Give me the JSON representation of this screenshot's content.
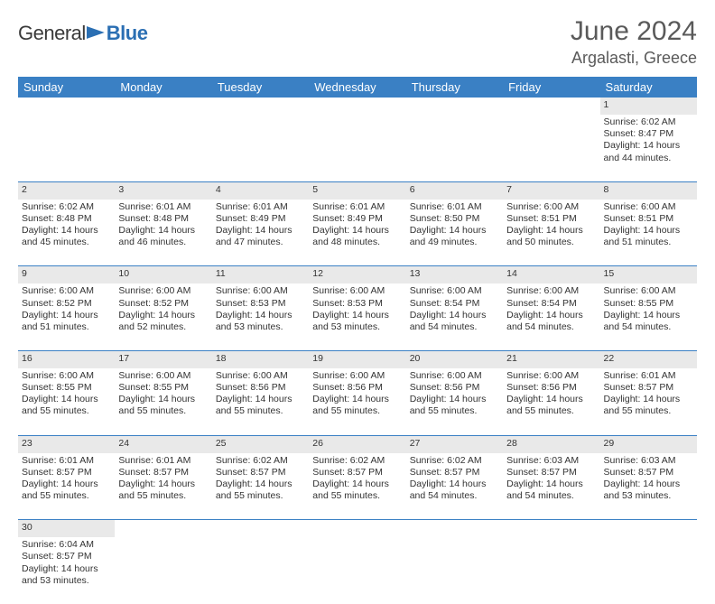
{
  "brand": {
    "part1": "General",
    "part2": "Blue"
  },
  "title": "June 2024",
  "location": "Argalasti, Greece",
  "colors": {
    "header_bg": "#3a80c4",
    "header_fg": "#ffffff",
    "daynum_bg": "#e9e9e9",
    "rule": "#3a80c4",
    "text": "#333333",
    "title_color": "#5a5a5a"
  },
  "weekdays": [
    "Sunday",
    "Monday",
    "Tuesday",
    "Wednesday",
    "Thursday",
    "Friday",
    "Saturday"
  ],
  "first_weekday_index": 6,
  "days": [
    {
      "n": 1,
      "sunrise": "6:02 AM",
      "sunset": "8:47 PM",
      "daylight": "14 hours and 44 minutes."
    },
    {
      "n": 2,
      "sunrise": "6:02 AM",
      "sunset": "8:48 PM",
      "daylight": "14 hours and 45 minutes."
    },
    {
      "n": 3,
      "sunrise": "6:01 AM",
      "sunset": "8:48 PM",
      "daylight": "14 hours and 46 minutes."
    },
    {
      "n": 4,
      "sunrise": "6:01 AM",
      "sunset": "8:49 PM",
      "daylight": "14 hours and 47 minutes."
    },
    {
      "n": 5,
      "sunrise": "6:01 AM",
      "sunset": "8:49 PM",
      "daylight": "14 hours and 48 minutes."
    },
    {
      "n": 6,
      "sunrise": "6:01 AM",
      "sunset": "8:50 PM",
      "daylight": "14 hours and 49 minutes."
    },
    {
      "n": 7,
      "sunrise": "6:00 AM",
      "sunset": "8:51 PM",
      "daylight": "14 hours and 50 minutes."
    },
    {
      "n": 8,
      "sunrise": "6:00 AM",
      "sunset": "8:51 PM",
      "daylight": "14 hours and 51 minutes."
    },
    {
      "n": 9,
      "sunrise": "6:00 AM",
      "sunset": "8:52 PM",
      "daylight": "14 hours and 51 minutes."
    },
    {
      "n": 10,
      "sunrise": "6:00 AM",
      "sunset": "8:52 PM",
      "daylight": "14 hours and 52 minutes."
    },
    {
      "n": 11,
      "sunrise": "6:00 AM",
      "sunset": "8:53 PM",
      "daylight": "14 hours and 53 minutes."
    },
    {
      "n": 12,
      "sunrise": "6:00 AM",
      "sunset": "8:53 PM",
      "daylight": "14 hours and 53 minutes."
    },
    {
      "n": 13,
      "sunrise": "6:00 AM",
      "sunset": "8:54 PM",
      "daylight": "14 hours and 54 minutes."
    },
    {
      "n": 14,
      "sunrise": "6:00 AM",
      "sunset": "8:54 PM",
      "daylight": "14 hours and 54 minutes."
    },
    {
      "n": 15,
      "sunrise": "6:00 AM",
      "sunset": "8:55 PM",
      "daylight": "14 hours and 54 minutes."
    },
    {
      "n": 16,
      "sunrise": "6:00 AM",
      "sunset": "8:55 PM",
      "daylight": "14 hours and 55 minutes."
    },
    {
      "n": 17,
      "sunrise": "6:00 AM",
      "sunset": "8:55 PM",
      "daylight": "14 hours and 55 minutes."
    },
    {
      "n": 18,
      "sunrise": "6:00 AM",
      "sunset": "8:56 PM",
      "daylight": "14 hours and 55 minutes."
    },
    {
      "n": 19,
      "sunrise": "6:00 AM",
      "sunset": "8:56 PM",
      "daylight": "14 hours and 55 minutes."
    },
    {
      "n": 20,
      "sunrise": "6:00 AM",
      "sunset": "8:56 PM",
      "daylight": "14 hours and 55 minutes."
    },
    {
      "n": 21,
      "sunrise": "6:00 AM",
      "sunset": "8:56 PM",
      "daylight": "14 hours and 55 minutes."
    },
    {
      "n": 22,
      "sunrise": "6:01 AM",
      "sunset": "8:57 PM",
      "daylight": "14 hours and 55 minutes."
    },
    {
      "n": 23,
      "sunrise": "6:01 AM",
      "sunset": "8:57 PM",
      "daylight": "14 hours and 55 minutes."
    },
    {
      "n": 24,
      "sunrise": "6:01 AM",
      "sunset": "8:57 PM",
      "daylight": "14 hours and 55 minutes."
    },
    {
      "n": 25,
      "sunrise": "6:02 AM",
      "sunset": "8:57 PM",
      "daylight": "14 hours and 55 minutes."
    },
    {
      "n": 26,
      "sunrise": "6:02 AM",
      "sunset": "8:57 PM",
      "daylight": "14 hours and 55 minutes."
    },
    {
      "n": 27,
      "sunrise": "6:02 AM",
      "sunset": "8:57 PM",
      "daylight": "14 hours and 54 minutes."
    },
    {
      "n": 28,
      "sunrise": "6:03 AM",
      "sunset": "8:57 PM",
      "daylight": "14 hours and 54 minutes."
    },
    {
      "n": 29,
      "sunrise": "6:03 AM",
      "sunset": "8:57 PM",
      "daylight": "14 hours and 53 minutes."
    },
    {
      "n": 30,
      "sunrise": "6:04 AM",
      "sunset": "8:57 PM",
      "daylight": "14 hours and 53 minutes."
    }
  ],
  "labels": {
    "sunrise": "Sunrise:",
    "sunset": "Sunset:",
    "daylight": "Daylight:"
  }
}
